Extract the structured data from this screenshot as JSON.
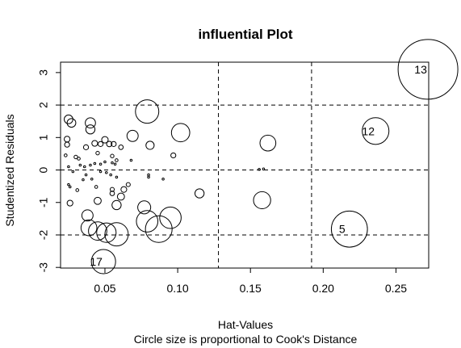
{
  "chart_data": {
    "type": "scatter",
    "title": "influential Plot",
    "xlabel": "Hat-Values",
    "subtitle": "Circle size is proportional to Cook's Distance",
    "ylabel": "Studentized Residuals",
    "xlim": [
      0.0195,
      0.2725
    ],
    "ylim": [
      -3.02,
      3.32
    ],
    "x_ticks": [
      0.05,
      0.1,
      0.15,
      0.2,
      0.25
    ],
    "x_tick_labels": [
      "0.05",
      "0.10",
      "0.15",
      "0.20",
      "0.25"
    ],
    "y_ticks": [
      -3,
      -2,
      -1,
      0,
      1,
      2,
      3
    ],
    "y_tick_labels": [
      "-3",
      "-2",
      "-1",
      "0",
      "1",
      "2",
      "3"
    ],
    "reference_lines": {
      "horizontal": [
        -2,
        0,
        2
      ],
      "vertical": [
        0.128,
        0.192
      ],
      "style": "dashed"
    },
    "points": [
      {
        "x": 0.272,
        "y": 3.1,
        "cook": 0.85,
        "label": "13"
      },
      {
        "x": 0.236,
        "y": 1.2,
        "cook": 0.17,
        "label": "12"
      },
      {
        "x": 0.218,
        "y": -1.82,
        "cook": 0.31,
        "label": "5"
      },
      {
        "x": 0.049,
        "y": -2.82,
        "cook": 0.14,
        "label": "17"
      },
      {
        "x": 0.162,
        "y": 0.83,
        "cook": 0.06
      },
      {
        "x": 0.158,
        "y": -0.93,
        "cook": 0.07
      },
      {
        "x": 0.156,
        "y": 0.02,
        "cook": 0.001
      },
      {
        "x": 0.159,
        "y": 0.03,
        "cook": 0.001
      },
      {
        "x": 0.079,
        "y": 1.8,
        "cook": 0.13
      },
      {
        "x": 0.102,
        "y": 1.15,
        "cook": 0.08
      },
      {
        "x": 0.087,
        "y": -1.82,
        "cook": 0.17
      },
      {
        "x": 0.095,
        "y": -1.47,
        "cook": 0.11
      },
      {
        "x": 0.079,
        "y": -1.58,
        "cook": 0.11
      },
      {
        "x": 0.058,
        "y": -1.98,
        "cook": 0.13
      },
      {
        "x": 0.051,
        "y": -1.93,
        "cook": 0.09
      },
      {
        "x": 0.045,
        "y": -1.88,
        "cook": 0.08
      },
      {
        "x": 0.039,
        "y": -1.78,
        "cook": 0.06
      },
      {
        "x": 0.038,
        "y": -1.4,
        "cook": 0.03
      },
      {
        "x": 0.077,
        "y": -1.15,
        "cook": 0.04
      },
      {
        "x": 0.069,
        "y": 1.05,
        "cook": 0.03
      },
      {
        "x": 0.115,
        "y": -0.72,
        "cook": 0.02
      },
      {
        "x": 0.081,
        "y": 0.76,
        "cook": 0.016
      },
      {
        "x": 0.097,
        "y": 0.45,
        "cook": 0.006
      },
      {
        "x": 0.058,
        "y": -1.08,
        "cook": 0.02
      },
      {
        "x": 0.061,
        "y": -0.82,
        "cook": 0.012
      },
      {
        "x": 0.063,
        "y": -0.6,
        "cook": 0.008
      },
      {
        "x": 0.045,
        "y": -0.95,
        "cook": 0.012
      },
      {
        "x": 0.026,
        "y": -1.02,
        "cook": 0.008
      },
      {
        "x": 0.04,
        "y": 1.45,
        "cook": 0.025
      },
      {
        "x": 0.04,
        "y": 1.25,
        "cook": 0.02
      },
      {
        "x": 0.025,
        "y": 1.56,
        "cook": 0.018
      },
      {
        "x": 0.027,
        "y": 1.45,
        "cook": 0.018
      },
      {
        "x": 0.024,
        "y": 0.95,
        "cook": 0.008
      },
      {
        "x": 0.024,
        "y": 0.78,
        "cook": 0.006
      },
      {
        "x": 0.03,
        "y": 0.4,
        "cook": 0.003
      },
      {
        "x": 0.023,
        "y": 0.45,
        "cook": 0.002
      },
      {
        "x": 0.037,
        "y": 0.7,
        "cook": 0.006
      },
      {
        "x": 0.043,
        "y": 0.82,
        "cook": 0.008
      },
      {
        "x": 0.047,
        "y": 0.8,
        "cook": 0.006
      },
      {
        "x": 0.05,
        "y": 0.93,
        "cook": 0.01
      },
      {
        "x": 0.053,
        "y": 0.8,
        "cook": 0.007
      },
      {
        "x": 0.056,
        "y": 0.8,
        "cook": 0.006
      },
      {
        "x": 0.061,
        "y": 0.7,
        "cook": 0.005
      },
      {
        "x": 0.055,
        "y": 0.43,
        "cook": 0.003
      },
      {
        "x": 0.058,
        "y": 0.3,
        "cook": 0.002
      },
      {
        "x": 0.045,
        "y": 0.52,
        "cook": 0.003
      },
      {
        "x": 0.033,
        "y": 0.15,
        "cook": 0.001
      },
      {
        "x": 0.036,
        "y": 0.1,
        "cook": 0.001
      },
      {
        "x": 0.04,
        "y": 0.15,
        "cook": 0.001
      },
      {
        "x": 0.043,
        "y": 0.2,
        "cook": 0.001
      },
      {
        "x": 0.047,
        "y": 0.18,
        "cook": 0.001
      },
      {
        "x": 0.05,
        "y": 0.25,
        "cook": 0.001
      },
      {
        "x": 0.055,
        "y": 0.22,
        "cook": 0.001
      },
      {
        "x": 0.057,
        "y": 0.18,
        "cook": 0.001
      },
      {
        "x": 0.025,
        "y": 0.1,
        "cook": 0.001
      },
      {
        "x": 0.028,
        "y": -0.05,
        "cook": 0.001
      },
      {
        "x": 0.035,
        "y": -0.3,
        "cook": 0.001
      },
      {
        "x": 0.037,
        "y": -0.15,
        "cook": 0.001
      },
      {
        "x": 0.041,
        "y": -0.28,
        "cook": 0.001
      },
      {
        "x": 0.044,
        "y": -0.52,
        "cook": 0.002
      },
      {
        "x": 0.047,
        "y": -0.05,
        "cook": 0.001
      },
      {
        "x": 0.051,
        "y": -0.08,
        "cook": 0.001
      },
      {
        "x": 0.054,
        "y": -0.15,
        "cook": 0.001
      },
      {
        "x": 0.058,
        "y": -0.22,
        "cook": 0.001
      },
      {
        "x": 0.025,
        "y": -0.45,
        "cook": 0.001
      },
      {
        "x": 0.026,
        "y": -0.52,
        "cook": 0.001
      },
      {
        "x": 0.031,
        "y": -0.62,
        "cook": 0.002
      },
      {
        "x": 0.055,
        "y": -0.6,
        "cook": 0.004
      },
      {
        "x": 0.055,
        "y": -0.72,
        "cook": 0.005
      },
      {
        "x": 0.066,
        "y": -0.45,
        "cook": 0.004
      },
      {
        "x": 0.08,
        "y": -0.15,
        "cook": 0.001
      },
      {
        "x": 0.08,
        "y": -0.22,
        "cook": 0.001
      },
      {
        "x": 0.09,
        "y": -0.28,
        "cook": 0.001
      },
      {
        "x": 0.068,
        "y": 0.3,
        "cook": 0.001
      },
      {
        "x": 0.032,
        "y": 0.35,
        "cook": 0.002
      }
    ]
  }
}
